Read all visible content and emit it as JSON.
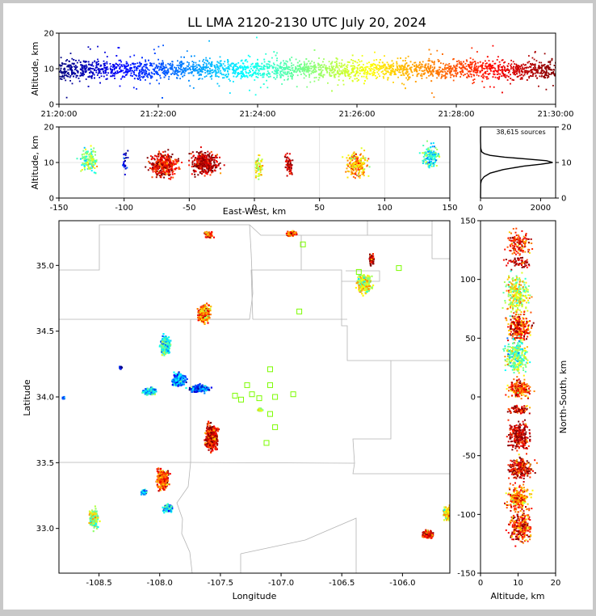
{
  "title": "LL LMA 2120-2130 UTC July 20, 2024",
  "colors": {
    "colormap": "jet",
    "stations": "#7cfc00",
    "map_lines": "#b4b4b4",
    "panel_border": "#000000",
    "frame": "#c8c8c8",
    "background": "#ffffff"
  },
  "chart_data": [
    {
      "id": "time_height",
      "type": "scatter",
      "xlabel": "",
      "ylabel": "Altitude, km",
      "x_ticks": [
        "21:20:00",
        "21:22:00",
        "21:24:00",
        "21:26:00",
        "21:28:00",
        "21:30:00"
      ],
      "ylim": [
        0,
        20
      ],
      "y_ticks": [
        0,
        10,
        20
      ],
      "color_by": "time",
      "point_summary": {
        "time_range": [
          "21:20:00",
          "21:30:00"
        ],
        "altitude_core_km": [
          6,
          14
        ],
        "altitude_median_km": 10
      }
    },
    {
      "id": "ew_height",
      "type": "scatter",
      "xlabel": "East-West, km",
      "ylabel": "Altitude, km",
      "xlim": [
        -150,
        150
      ],
      "x_ticks": [
        -150,
        -100,
        -50,
        0,
        50,
        100,
        150
      ],
      "ylim": [
        0,
        20
      ],
      "y_ticks": [
        0,
        10,
        20
      ],
      "clusters": [
        {
          "x": -127,
          "width": 10,
          "alt": 11,
          "n": 140,
          "t": 0.5
        },
        {
          "x": -100,
          "width": 3,
          "alt": 10,
          "n": 25,
          "t": 0.08
        },
        {
          "x": -70,
          "width": 15,
          "alt": 9.5,
          "n": 360,
          "t": 0.9
        },
        {
          "x": -38,
          "width": 14,
          "alt": 10,
          "n": 360,
          "t": 0.95
        },
        {
          "x": 3,
          "width": 4,
          "alt": 9,
          "n": 60,
          "t": 0.6
        },
        {
          "x": 26,
          "width": 4,
          "alt": 9.5,
          "n": 70,
          "t": 0.95
        },
        {
          "x": 78,
          "width": 10,
          "alt": 9.5,
          "n": 200,
          "t": 0.7
        },
        {
          "x": 135,
          "width": 9,
          "alt": 12,
          "n": 150,
          "t": 0.4
        }
      ]
    },
    {
      "id": "altitude_histogram",
      "type": "line",
      "annotation": "38,615 sources",
      "xlim": [
        0,
        2500
      ],
      "x_ticks": [
        0,
        2000
      ],
      "ylim": [
        0,
        20
      ],
      "y_ticks": [
        0,
        10,
        20
      ],
      "profile": [
        {
          "alt": 0,
          "count": 0
        },
        {
          "alt": 4,
          "count": 5
        },
        {
          "alt": 5,
          "count": 30
        },
        {
          "alt": 6,
          "count": 120
        },
        {
          "alt": 7,
          "count": 320
        },
        {
          "alt": 8,
          "count": 750
        },
        {
          "alt": 9,
          "count": 1450
        },
        {
          "alt": 9.5,
          "count": 2000
        },
        {
          "alt": 10,
          "count": 2400
        },
        {
          "alt": 10.5,
          "count": 2200
        },
        {
          "alt": 11,
          "count": 1500
        },
        {
          "alt": 11.5,
          "count": 800
        },
        {
          "alt": 12,
          "count": 320
        },
        {
          "alt": 12.5,
          "count": 120
        },
        {
          "alt": 13,
          "count": 40
        },
        {
          "alt": 14,
          "count": 8
        },
        {
          "alt": 16,
          "count": 0
        },
        {
          "alt": 20,
          "count": 0
        }
      ]
    },
    {
      "id": "plan_view",
      "type": "scatter",
      "xlabel": "Longitude",
      "ylabel": "Latitude",
      "xlim": [
        -108.83,
        -105.61
      ],
      "x_ticks": [
        -108.5,
        -108.0,
        -107.5,
        -107.0,
        -106.5,
        -106.0
      ],
      "ylim": [
        32.66,
        35.34
      ],
      "y_ticks": [
        33.0,
        33.5,
        34.0,
        34.5,
        35.0
      ],
      "stations": [
        {
          "lon": -106.82,
          "lat": 35.16
        },
        {
          "lon": -106.03,
          "lat": 34.98
        },
        {
          "lon": -106.36,
          "lat": 34.95
        },
        {
          "lon": -106.85,
          "lat": 34.65
        },
        {
          "lon": -107.09,
          "lat": 34.21
        },
        {
          "lon": -107.28,
          "lat": 34.09
        },
        {
          "lon": -107.09,
          "lat": 34.09
        },
        {
          "lon": -107.38,
          "lat": 34.01
        },
        {
          "lon": -107.24,
          "lat": 34.02
        },
        {
          "lon": -107.33,
          "lat": 33.98
        },
        {
          "lon": -107.18,
          "lat": 33.99
        },
        {
          "lon": -107.05,
          "lat": 34.0
        },
        {
          "lon": -106.9,
          "lat": 34.02
        },
        {
          "lon": -107.09,
          "lat": 33.87
        },
        {
          "lon": -107.05,
          "lat": 33.77
        },
        {
          "lon": -107.12,
          "lat": 33.65
        }
      ],
      "clusters": [
        {
          "lon": -107.6,
          "lat": 35.24,
          "w": 0.04,
          "h": 0.03,
          "n": 30,
          "t": 0.8
        },
        {
          "lon": -106.92,
          "lat": 35.25,
          "w": 0.04,
          "h": 0.02,
          "n": 30,
          "t": 0.8
        },
        {
          "lon": -106.26,
          "lat": 35.05,
          "w": 0.02,
          "h": 0.04,
          "n": 25,
          "t": 0.95
        },
        {
          "lon": -106.32,
          "lat": 34.87,
          "w": 0.06,
          "h": 0.08,
          "n": 90,
          "t": 0.6
        },
        {
          "lon": -107.64,
          "lat": 34.64,
          "w": 0.05,
          "h": 0.07,
          "n": 110,
          "t": 0.75
        },
        {
          "lon": -107.96,
          "lat": 34.4,
          "w": 0.04,
          "h": 0.07,
          "n": 120,
          "t": 0.4
        },
        {
          "lon": -108.33,
          "lat": 34.23,
          "w": 0.01,
          "h": 0.01,
          "n": 10,
          "t": 0.05
        },
        {
          "lon": -107.85,
          "lat": 34.14,
          "w": 0.06,
          "h": 0.05,
          "n": 80,
          "t": 0.25
        },
        {
          "lon": -107.68,
          "lat": 34.07,
          "w": 0.08,
          "h": 0.03,
          "n": 60,
          "t": 0.2
        },
        {
          "lon": -108.09,
          "lat": 34.05,
          "w": 0.05,
          "h": 0.03,
          "n": 60,
          "t": 0.35
        },
        {
          "lon": -107.18,
          "lat": 33.91,
          "w": 0.02,
          "h": 0.01,
          "n": 25,
          "t": 0.55
        },
        {
          "lon": -107.58,
          "lat": 33.7,
          "w": 0.05,
          "h": 0.1,
          "n": 150,
          "t": 0.9
        },
        {
          "lon": -107.98,
          "lat": 33.38,
          "w": 0.05,
          "h": 0.08,
          "n": 100,
          "t": 0.8
        },
        {
          "lon": -107.94,
          "lat": 33.16,
          "w": 0.04,
          "h": 0.03,
          "n": 40,
          "t": 0.4
        },
        {
          "lon": -108.14,
          "lat": 33.28,
          "w": 0.03,
          "h": 0.02,
          "n": 20,
          "t": 0.3
        },
        {
          "lon": -108.55,
          "lat": 33.08,
          "w": 0.04,
          "h": 0.08,
          "n": 60,
          "t": 0.55
        },
        {
          "lon": -105.8,
          "lat": 32.96,
          "w": 0.05,
          "h": 0.03,
          "n": 60,
          "t": 0.9
        },
        {
          "lon": -105.64,
          "lat": 33.12,
          "w": 0.03,
          "h": 0.05,
          "n": 50,
          "t": 0.65
        },
        {
          "lon": -108.8,
          "lat": 34.0,
          "w": 0.01,
          "h": 0.01,
          "n": 6,
          "t": 0.3
        }
      ]
    },
    {
      "id": "height_ns",
      "type": "scatter",
      "xlabel": "Altitude, km",
      "ylabel": "North-South, km",
      "xlim": [
        0,
        20
      ],
      "x_ticks": [
        0,
        10,
        20
      ],
      "ylim": [
        -150,
        150
      ],
      "y_ticks": [
        -150,
        -100,
        -50,
        0,
        50,
        100,
        150
      ],
      "clusters": [
        {
          "y": 132,
          "h": 12,
          "alt": 10,
          "n": 150,
          "t": 0.85
        },
        {
          "y": 115,
          "h": 6,
          "alt": 10,
          "n": 60,
          "t": 0.95
        },
        {
          "y": 88,
          "h": 18,
          "alt": 9.5,
          "n": 300,
          "t": 0.6
        },
        {
          "y": 60,
          "h": 14,
          "alt": 10,
          "n": 250,
          "t": 0.85
        },
        {
          "y": 35,
          "h": 16,
          "alt": 9.5,
          "n": 280,
          "t": 0.5
        },
        {
          "y": 8,
          "h": 8,
          "alt": 10,
          "n": 200,
          "t": 0.8
        },
        {
          "y": -10,
          "h": 4,
          "alt": 10,
          "n": 80,
          "t": 0.9
        },
        {
          "y": -32,
          "h": 12,
          "alt": 10,
          "n": 280,
          "t": 0.95
        },
        {
          "y": -60,
          "h": 10,
          "alt": 10.5,
          "n": 240,
          "t": 0.9
        },
        {
          "y": -85,
          "h": 12,
          "alt": 10,
          "n": 250,
          "t": 0.75
        },
        {
          "y": -110,
          "h": 14,
          "alt": 10.5,
          "n": 260,
          "t": 0.85
        }
      ]
    }
  ]
}
